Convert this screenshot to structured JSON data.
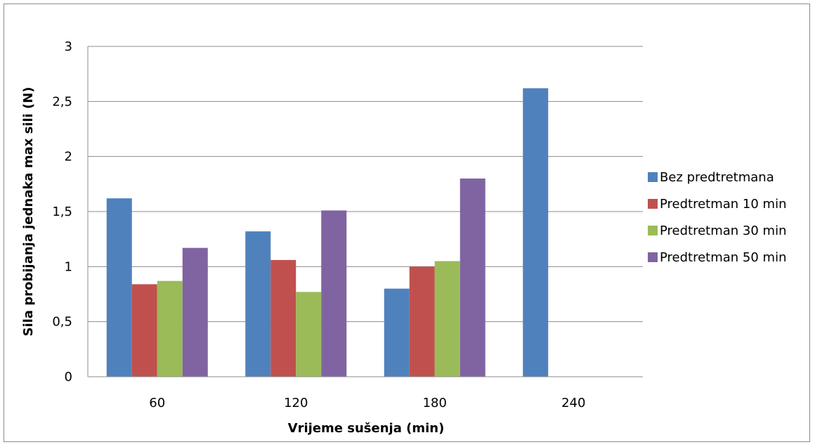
{
  "chart_data": {
    "type": "bar",
    "title": "",
    "xlabel": "Vrijeme sušenja (min)",
    "ylabel": "Sila probijanja jednaka max sili (N)",
    "categories": [
      "60",
      "120",
      "180",
      "240"
    ],
    "ylim": [
      0,
      3
    ],
    "yticks": [
      0,
      0.5,
      1,
      1.5,
      2,
      2.5,
      3
    ],
    "ytick_labels": [
      "0",
      "0,5",
      "1",
      "1,5",
      "2",
      "2,5",
      "3"
    ],
    "grid": true,
    "legend_position": "right",
    "series": [
      {
        "name": "Bez predtretmana",
        "color": "#4f81bd",
        "values": [
          1.62,
          1.32,
          0.8,
          2.62
        ]
      },
      {
        "name": "Predtretman 10 min",
        "color": "#c0504d",
        "values": [
          0.84,
          1.06,
          1.0,
          null
        ]
      },
      {
        "name": "Predtretman 30 min",
        "color": "#9bbb59",
        "values": [
          0.87,
          0.77,
          1.05,
          null
        ]
      },
      {
        "name": "Predtretman 50 min",
        "color": "#8064a2",
        "values": [
          1.17,
          1.51,
          1.8,
          null
        ]
      }
    ]
  }
}
